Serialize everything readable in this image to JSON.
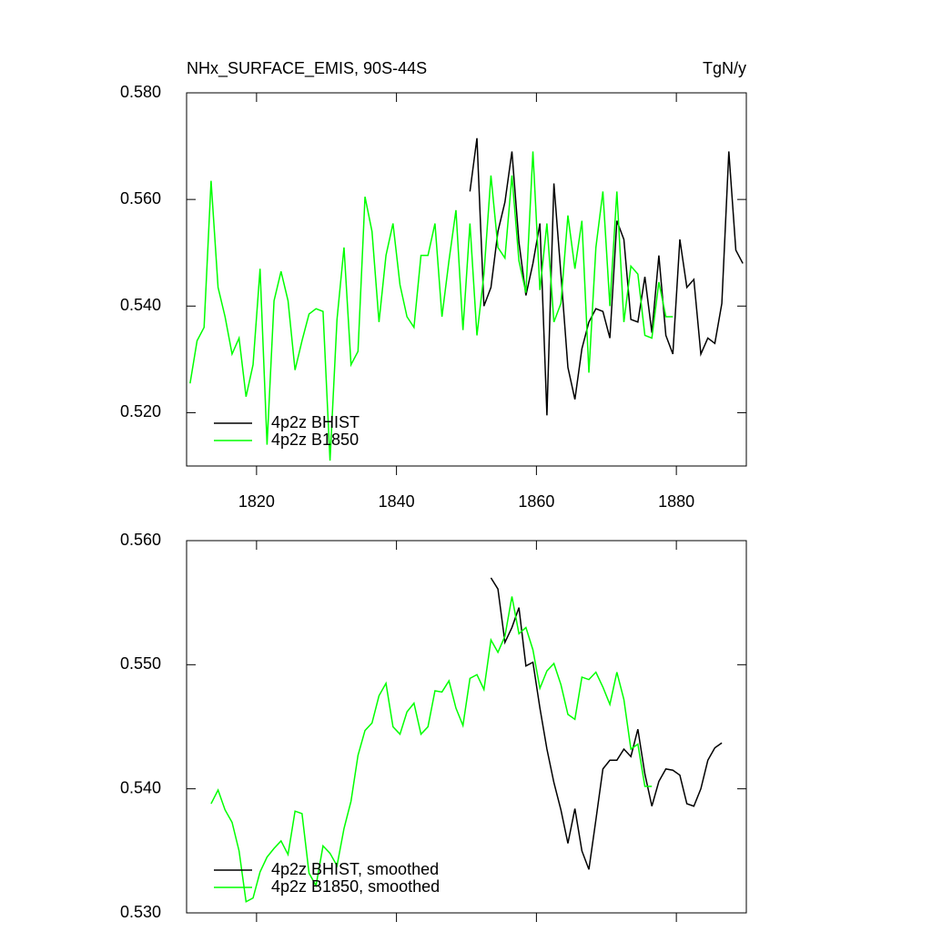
{
  "chart_data": [
    {
      "type": "line",
      "title": "NHx_SURFACE_EMIS, 90S-44S",
      "right_title": "TgN/y",
      "xlim": [
        1810,
        1890
      ],
      "xticks": [
        1820,
        1840,
        1860,
        1880
      ],
      "ylim": [
        0.51,
        0.58
      ],
      "yticks": [
        {
          "value": 0.52,
          "label": "0.520"
        },
        {
          "value": 0.54,
          "label": "0.540"
        },
        {
          "value": 0.56,
          "label": "0.560"
        },
        {
          "value": 0.58,
          "label": "0.580"
        }
      ],
      "legend": "lower left",
      "series": [
        {
          "name": "4p2z BHIST",
          "color": "#000000",
          "x": [
            1850.5,
            1851.5,
            1852.5,
            1853.5,
            1854.5,
            1855.5,
            1856.5,
            1857.5,
            1858.5,
            1859.5,
            1860.5,
            1861.5,
            1862.5,
            1863.5,
            1864.5,
            1865.5,
            1866.5,
            1867.5,
            1868.5,
            1869.5,
            1870.5,
            1871.5,
            1872.5,
            1873.5,
            1874.5,
            1875.5,
            1876.5,
            1877.5,
            1878.5,
            1879.5,
            1880.5,
            1881.5,
            1882.5,
            1883.5,
            1884.5,
            1885.5,
            1886.5,
            1887.5,
            1888.5,
            1889.5
          ],
          "values": [
            0.5615,
            0.5715,
            0.54,
            0.5435,
            0.554,
            0.5595,
            0.569,
            0.552,
            0.542,
            0.548,
            0.5555,
            0.5195,
            0.563,
            0.546,
            0.5285,
            0.5225,
            0.532,
            0.537,
            0.5395,
            0.539,
            0.534,
            0.556,
            0.5525,
            0.5375,
            0.537,
            0.5455,
            0.535,
            0.5495,
            0.5345,
            0.531,
            0.5525,
            0.5435,
            0.545,
            0.531,
            0.534,
            0.533,
            0.5405,
            0.569,
            0.5505,
            0.548
          ]
        },
        {
          "name": "4p2z B1850",
          "color": "#00ff00",
          "x": [
            1810.5,
            1811.5,
            1812.5,
            1813.5,
            1814.5,
            1815.5,
            1816.5,
            1817.5,
            1818.5,
            1819.5,
            1820.5,
            1821.5,
            1822.5,
            1823.5,
            1824.5,
            1825.5,
            1826.5,
            1827.5,
            1828.5,
            1829.5,
            1830.5,
            1831.5,
            1832.5,
            1833.5,
            1834.5,
            1835.5,
            1836.5,
            1837.5,
            1838.5,
            1839.5,
            1840.5,
            1841.5,
            1842.5,
            1843.5,
            1844.5,
            1845.5,
            1846.5,
            1847.5,
            1848.5,
            1849.5,
            1850.5,
            1851.5,
            1852.5,
            1853.5,
            1854.5,
            1855.5,
            1856.5,
            1857.5,
            1858.5,
            1859.5,
            1860.5,
            1861.5,
            1862.5,
            1863.5,
            1864.5,
            1865.5,
            1866.5,
            1867.5,
            1868.5,
            1869.5,
            1870.5,
            1871.5,
            1872.5,
            1873.5,
            1874.5,
            1875.5,
            1876.5,
            1877.5,
            1878.5,
            1879.5
          ],
          "values": [
            0.5255,
            0.5335,
            0.536,
            0.5635,
            0.5435,
            0.538,
            0.531,
            0.534,
            0.523,
            0.529,
            0.547,
            0.514,
            0.541,
            0.5465,
            0.541,
            0.528,
            0.5335,
            0.5385,
            0.5395,
            0.539,
            0.511,
            0.5375,
            0.551,
            0.529,
            0.5315,
            0.5605,
            0.554,
            0.537,
            0.5495,
            0.5555,
            0.544,
            0.538,
            0.536,
            0.5495,
            0.5495,
            0.5555,
            0.538,
            0.5485,
            0.558,
            0.5355,
            0.5555,
            0.5345,
            0.546,
            0.5645,
            0.551,
            0.549,
            0.5645,
            0.5485,
            0.5425,
            0.569,
            0.543,
            0.5555,
            0.537,
            0.5405,
            0.557,
            0.547,
            0.556,
            0.5275,
            0.551,
            0.5615,
            0.54,
            0.5615,
            0.537,
            0.5475,
            0.546,
            0.5345,
            0.534,
            0.5445,
            0.538,
            0.538
          ]
        }
      ]
    },
    {
      "type": "line",
      "xlim": [
        1810,
        1890
      ],
      "xticks": [
        1820,
        1840,
        1860,
        1880
      ],
      "ylim": [
        0.53,
        0.56
      ],
      "yticks": [
        {
          "value": 0.53,
          "label": "0.530"
        },
        {
          "value": 0.54,
          "label": "0.540"
        },
        {
          "value": 0.55,
          "label": "0.550"
        },
        {
          "value": 0.56,
          "label": "0.560"
        }
      ],
      "legend": "lower left",
      "series": [
        {
          "name": "4p2z BHIST, smoothed",
          "color": "#000000",
          "x": [
            1853.5,
            1854.5,
            1855.5,
            1856.5,
            1857.5,
            1858.5,
            1859.5,
            1860.5,
            1861.5,
            1862.5,
            1863.5,
            1864.5,
            1865.5,
            1866.5,
            1867.5,
            1868.5,
            1869.5,
            1870.5,
            1871.5,
            1872.5,
            1873.5,
            1874.5,
            1875.5,
            1876.5,
            1877.5,
            1878.5,
            1879.5,
            1880.5,
            1881.5,
            1882.5,
            1883.5,
            1884.5,
            1885.5,
            1886.5
          ],
          "values": [
            0.557,
            0.5561,
            0.5518,
            0.553,
            0.5546,
            0.5499,
            0.5502,
            0.5465,
            0.5432,
            0.5405,
            0.5383,
            0.5356,
            0.5384,
            0.535,
            0.5335,
            0.5375,
            0.5416,
            0.5423,
            0.5423,
            0.5432,
            0.5426,
            0.5448,
            0.5412,
            0.5386,
            0.5406,
            0.5416,
            0.5415,
            0.5411,
            0.5388,
            0.5386,
            0.54,
            0.5423,
            0.5433,
            0.5437
          ]
        },
        {
          "name": "4p2z B1850, smoothed",
          "color": "#00ff00",
          "x": [
            1813.5,
            1814.5,
            1815.5,
            1816.5,
            1817.5,
            1818.5,
            1819.5,
            1820.5,
            1821.5,
            1822.5,
            1823.5,
            1824.5,
            1825.5,
            1826.5,
            1827.5,
            1828.5,
            1829.5,
            1830.5,
            1831.5,
            1832.5,
            1833.5,
            1834.5,
            1835.5,
            1836.5,
            1837.5,
            1838.5,
            1839.5,
            1840.5,
            1841.5,
            1842.5,
            1843.5,
            1844.5,
            1845.5,
            1846.5,
            1847.5,
            1848.5,
            1849.5,
            1850.5,
            1851.5,
            1852.5,
            1853.5,
            1854.5,
            1855.5,
            1856.5,
            1857.5,
            1858.5,
            1859.5,
            1860.5,
            1861.5,
            1862.5,
            1863.5,
            1864.5,
            1865.5,
            1866.5,
            1867.5,
            1868.5,
            1869.5,
            1870.5,
            1871.5,
            1872.5,
            1873.5,
            1874.5,
            1875.5,
            1876.5
          ],
          "values": [
            0.5388,
            0.5399,
            0.5383,
            0.5373,
            0.535,
            0.5309,
            0.5312,
            0.5333,
            0.5345,
            0.5352,
            0.5358,
            0.5347,
            0.5382,
            0.538,
            0.5332,
            0.5322,
            0.5354,
            0.5348,
            0.5338,
            0.5368,
            0.539,
            0.5427,
            0.5447,
            0.5453,
            0.5475,
            0.5485,
            0.545,
            0.5444,
            0.5462,
            0.5469,
            0.5444,
            0.545,
            0.5479,
            0.5478,
            0.5487,
            0.5465,
            0.5451,
            0.5489,
            0.5492,
            0.548,
            0.552,
            0.551,
            0.5523,
            0.5555,
            0.5525,
            0.553,
            0.5512,
            0.5481,
            0.5495,
            0.5501,
            0.5484,
            0.546,
            0.5456,
            0.549,
            0.5488,
            0.5494,
            0.5482,
            0.5468,
            0.5494,
            0.5472,
            0.5432,
            0.5436,
            0.5402,
            0.5402
          ]
        }
      ]
    }
  ]
}
